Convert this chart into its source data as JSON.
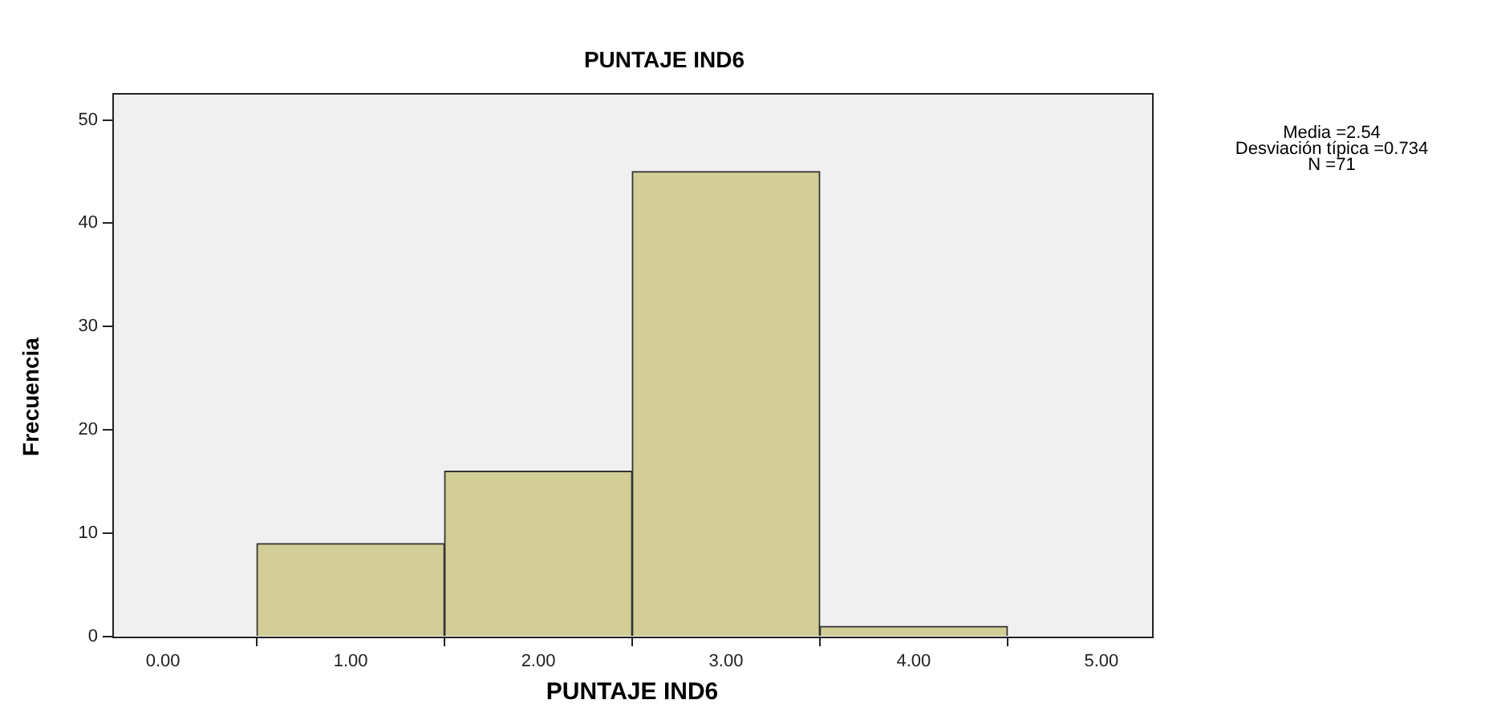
{
  "chart_data": {
    "type": "histogram",
    "title": "PUNTAJE IND6",
    "xlabel": "PUNTAJE IND6",
    "ylabel": "Frecuencia",
    "bins": [
      0.5,
      1.5,
      2.5,
      3.5,
      4.5
    ],
    "values": [
      9,
      16,
      45,
      1
    ],
    "color": "#d3ce97",
    "xlim": [
      -0.27,
      5.27
    ],
    "xticks": [
      {
        "value": 0,
        "label": "0.00"
      },
      {
        "value": 1,
        "label": "1.00"
      },
      {
        "value": 2,
        "label": "2.00"
      },
      {
        "value": 3,
        "label": "3.00"
      },
      {
        "value": 4,
        "label": "4.00"
      },
      {
        "value": 5,
        "label": "5.00"
      }
    ],
    "ylim": [
      0,
      52.6
    ],
    "yticks": [
      0,
      10,
      20,
      30,
      40,
      50
    ],
    "grid": false,
    "legend": false,
    "annotations": [
      "Media =2.54",
      "Desviación típica =0.734",
      "N =71"
    ]
  }
}
